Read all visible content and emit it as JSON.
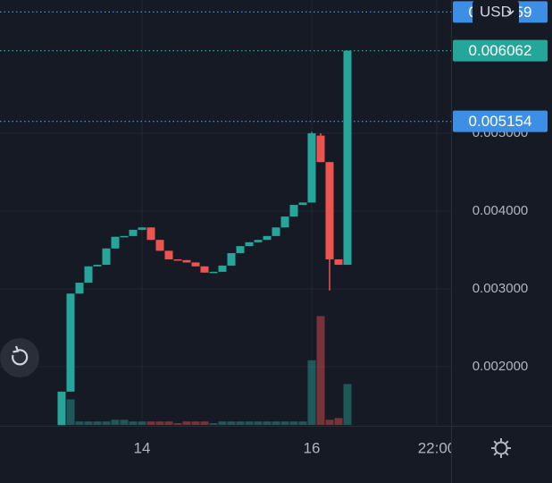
{
  "chart_data": {
    "type": "candlestick",
    "x": [
      0,
      1,
      2,
      3,
      4,
      5,
      6,
      7,
      8,
      9,
      10,
      11,
      12,
      13,
      14,
      15,
      16,
      17,
      18,
      19,
      20,
      21,
      22,
      23,
      24,
      25,
      26,
      27,
      28,
      29,
      30,
      31,
      32
    ],
    "open": [
      0.00125,
      0.00168,
      0.00294,
      0.00308,
      0.00329,
      0.00331,
      0.00352,
      0.00367,
      0.00368,
      0.00376,
      0.00379,
      0.00363,
      0.00349,
      0.00338,
      0.00337,
      0.00334,
      0.00329,
      0.00321,
      0.00322,
      0.0033,
      0.00346,
      0.00355,
      0.0036,
      0.00363,
      0.00368,
      0.00379,
      0.00393,
      0.00408,
      0.00411,
      0.00497,
      0.00463,
      0.00338,
      0.00331
    ],
    "high": [
      0.00168,
      0.00294,
      0.00308,
      0.00329,
      0.00331,
      0.00352,
      0.00367,
      0.00368,
      0.00376,
      0.00379,
      0.00379,
      0.00363,
      0.00349,
      0.00338,
      0.00337,
      0.00334,
      0.00329,
      0.00322,
      0.0033,
      0.00346,
      0.00355,
      0.0036,
      0.00363,
      0.00368,
      0.00379,
      0.00393,
      0.00408,
      0.00411,
      0.00502,
      0.005,
      0.00463,
      0.00338,
      0.006062
    ],
    "low": [
      0.00125,
      0.00168,
      0.00294,
      0.00308,
      0.00329,
      0.00331,
      0.00352,
      0.00367,
      0.00368,
      0.00376,
      0.00363,
      0.00349,
      0.00338,
      0.00337,
      0.00334,
      0.00329,
      0.00321,
      0.00321,
      0.00322,
      0.0033,
      0.00346,
      0.00355,
      0.0036,
      0.00363,
      0.00368,
      0.00379,
      0.00393,
      0.00408,
      0.00411,
      0.00463,
      0.00298,
      0.00331,
      0.00331
    ],
    "close": [
      0.00168,
      0.00294,
      0.00308,
      0.00329,
      0.00331,
      0.00352,
      0.00367,
      0.00368,
      0.00376,
      0.00379,
      0.00363,
      0.00349,
      0.00338,
      0.00337,
      0.00334,
      0.00329,
      0.00321,
      0.00322,
      0.0033,
      0.00346,
      0.00355,
      0.0036,
      0.00363,
      0.00368,
      0.00379,
      0.00393,
      0.00408,
      0.00411,
      0.005,
      0.00463,
      0.00338,
      0.00331,
      0.006062
    ],
    "volume": [
      5,
      15,
      2,
      2,
      2,
      2,
      3,
      3,
      2,
      2,
      2,
      2,
      2,
      1,
      2,
      2,
      2,
      1,
      2,
      2,
      2,
      2,
      2,
      2,
      2,
      2,
      2,
      2,
      38,
      64,
      3,
      4,
      24
    ],
    "volume_lim": [
      0,
      100
    ],
    "up_color": "#26a69a",
    "down_color": "#ef5350",
    "xlim": [
      -6.9,
      43.6
    ],
    "xticks": [
      {
        "value": 9,
        "label": "14"
      },
      {
        "value": 28,
        "label": "16"
      },
      {
        "value": 42,
        "label": "22:00"
      }
    ],
    "ylim": [
      0.001253,
      0.006713
    ],
    "yticks": [
      {
        "value": 0.002,
        "label": "0.002000"
      },
      {
        "value": 0.003,
        "label": "0.003000"
      },
      {
        "value": 0.004,
        "label": "0.004000"
      },
      {
        "value": 0.005,
        "label": "0.005000"
      }
    ],
    "grid": true,
    "price_lines": [
      {
        "value": 0.006559,
        "color": "#3d8fe6"
      },
      {
        "value": 0.006062,
        "color": "#26a69a"
      },
      {
        "value": 0.005154,
        "color": "#3d8fe6"
      }
    ]
  },
  "controls": {
    "currency": "USD"
  }
}
